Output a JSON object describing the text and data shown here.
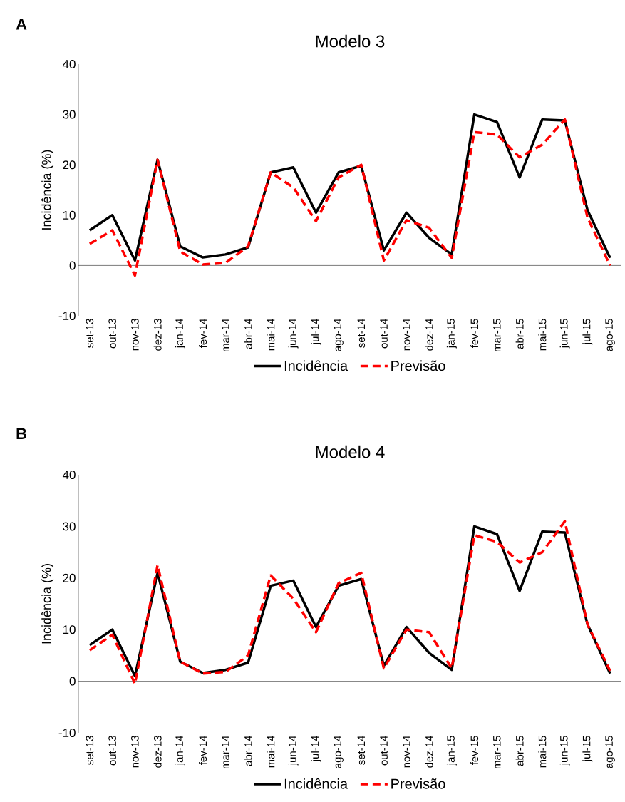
{
  "chart_data": [
    {
      "type": "line",
      "title": "Modelo 3",
      "ylabel": "Incidência (%)",
      "annotations": [
        "A"
      ],
      "categories": [
        "set-13",
        "out-13",
        "nov-13",
        "dez-13",
        "jan-14",
        "fev-14",
        "mar-14",
        "abr-14",
        "mai-14",
        "jun-14",
        "jul-14",
        "ago-14",
        "set-14",
        "out-14",
        "nov-14",
        "dez-14",
        "jan-15",
        "fev-15",
        "mar-15",
        "abr-15",
        "mai-15",
        "jun-15",
        "jul-15",
        "ago-15"
      ],
      "series": [
        {
          "name": "Incidência",
          "color": "#000000",
          "line_style": "solid",
          "values": [
            7,
            10,
            1,
            21,
            3.8,
            1.6,
            2.2,
            3.6,
            18.5,
            19.5,
            10.5,
            18.5,
            19.8,
            3,
            10.5,
            5.5,
            2.2,
            30,
            28.5,
            17.5,
            29,
            28.8,
            11,
            1.5
          ]
        },
        {
          "name": "Previsão",
          "color": "#ff0000",
          "line_style": "dashed",
          "values": [
            4.3,
            7,
            -2,
            21,
            2.8,
            0.2,
            0.5,
            3.8,
            18.5,
            15.5,
            8.8,
            17.5,
            20,
            1,
            9,
            7.5,
            1.5,
            26.5,
            26,
            21.5,
            24,
            29,
            9.5,
            0
          ]
        }
      ],
      "ylim": [
        -10,
        40
      ],
      "yticks": [
        -10,
        0,
        10,
        20,
        30,
        40
      ],
      "legend": "bottom"
    },
    {
      "type": "line",
      "title": "Modelo 4",
      "ylabel": "Incidência (%)",
      "annotations": [
        "B"
      ],
      "categories": [
        "set-13",
        "out-13",
        "nov-13",
        "dez-13",
        "jan-14",
        "fev-14",
        "mar-14",
        "abr-14",
        "mai-14",
        "jun-14",
        "jul-14",
        "ago-14",
        "set-14",
        "out-14",
        "nov-14",
        "dez-14",
        "jan-15",
        "fev-15",
        "mar-15",
        "abr-15",
        "mai-15",
        "jun-15",
        "jul-15",
        "ago-15"
      ],
      "series": [
        {
          "name": "Incidência",
          "color": "#000000",
          "line_style": "solid",
          "values": [
            7,
            10,
            1,
            21,
            3.8,
            1.6,
            2.2,
            3.6,
            18.5,
            19.5,
            10.5,
            18.5,
            19.8,
            3,
            10.5,
            5.5,
            2.2,
            30,
            28.5,
            17.5,
            29,
            28.8,
            11,
            1.5
          ]
        },
        {
          "name": "Previsão",
          "color": "#ff0000",
          "line_style": "dashed",
          "values": [
            6,
            9,
            -0.5,
            22.5,
            3.8,
            1.5,
            1.8,
            5,
            20.5,
            16,
            9.5,
            19,
            21,
            2.5,
            10,
            9.5,
            2.5,
            28.3,
            27,
            23,
            25,
            31,
            11,
            2
          ]
        }
      ],
      "ylim": [
        -10,
        40
      ],
      "yticks": [
        -10,
        0,
        10,
        20,
        30,
        40
      ],
      "legend": "bottom"
    }
  ]
}
